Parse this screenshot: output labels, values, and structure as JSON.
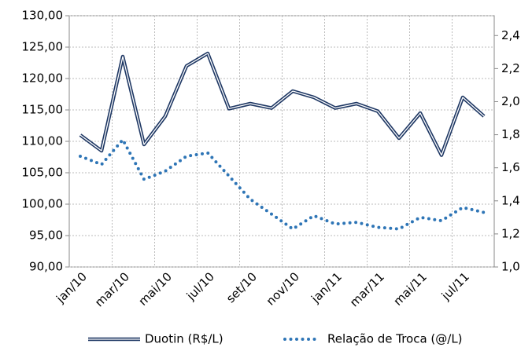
{
  "chart_data": {
    "type": "line",
    "categories": [
      "jan/10",
      null,
      "mar/10",
      null,
      "mai/10",
      null,
      "jul/10",
      null,
      "set/10",
      null,
      "nov/10",
      null,
      "jan/11",
      null,
      "mar/11",
      null,
      "mai/11",
      null,
      "jul/11",
      null
    ],
    "series": [
      {
        "name": "Duotin (R$/L)",
        "color": "#1f3864",
        "values": [
          111,
          108.5,
          123.5,
          109.5,
          114,
          122,
          124,
          115.2,
          116,
          115.3,
          118,
          117,
          115.3,
          116,
          114.8,
          110.5,
          114.5,
          107.8,
          117,
          114
        ]
      },
      {
        "name": "Relação de Troca (@/L)",
        "color": "#2e75b6",
        "axis": "y2",
        "values": [
          1.67,
          1.62,
          1.77,
          1.53,
          1.58,
          1.67,
          1.69,
          1.55,
          1.41,
          1.32,
          1.23,
          1.31,
          1.26,
          1.27,
          1.24,
          1.23,
          1.3,
          1.28,
          1.36,
          1.33
        ]
      }
    ],
    "ylim": [
      90,
      130
    ],
    "yticks": [
      {
        "value": 90,
        "label": "90,00"
      },
      {
        "value": 95,
        "label": "95,00"
      },
      {
        "value": 100,
        "label": "100,00"
      },
      {
        "value": 105,
        "label": "105,00"
      },
      {
        "value": 110,
        "label": "110,00"
      },
      {
        "value": 115,
        "label": "115,00"
      },
      {
        "value": 120,
        "label": "120,00"
      },
      {
        "value": 125,
        "label": "125,00"
      },
      {
        "value": 130,
        "label": "130,00"
      }
    ],
    "y2lim": [
      1.0,
      2.52
    ],
    "y2ticks": [
      {
        "value": 1.0,
        "label": "1,0"
      },
      {
        "value": 1.2,
        "label": "1,2"
      },
      {
        "value": 1.4,
        "label": "1,4"
      },
      {
        "value": 1.6,
        "label": "1,6"
      },
      {
        "value": 1.8,
        "label": "1,8"
      },
      {
        "value": 2.0,
        "label": "2,0"
      },
      {
        "value": 2.2,
        "label": "2,2"
      },
      {
        "value": 2.4,
        "label": "2,4"
      }
    ],
    "grid": true,
    "legend": "bottom"
  }
}
